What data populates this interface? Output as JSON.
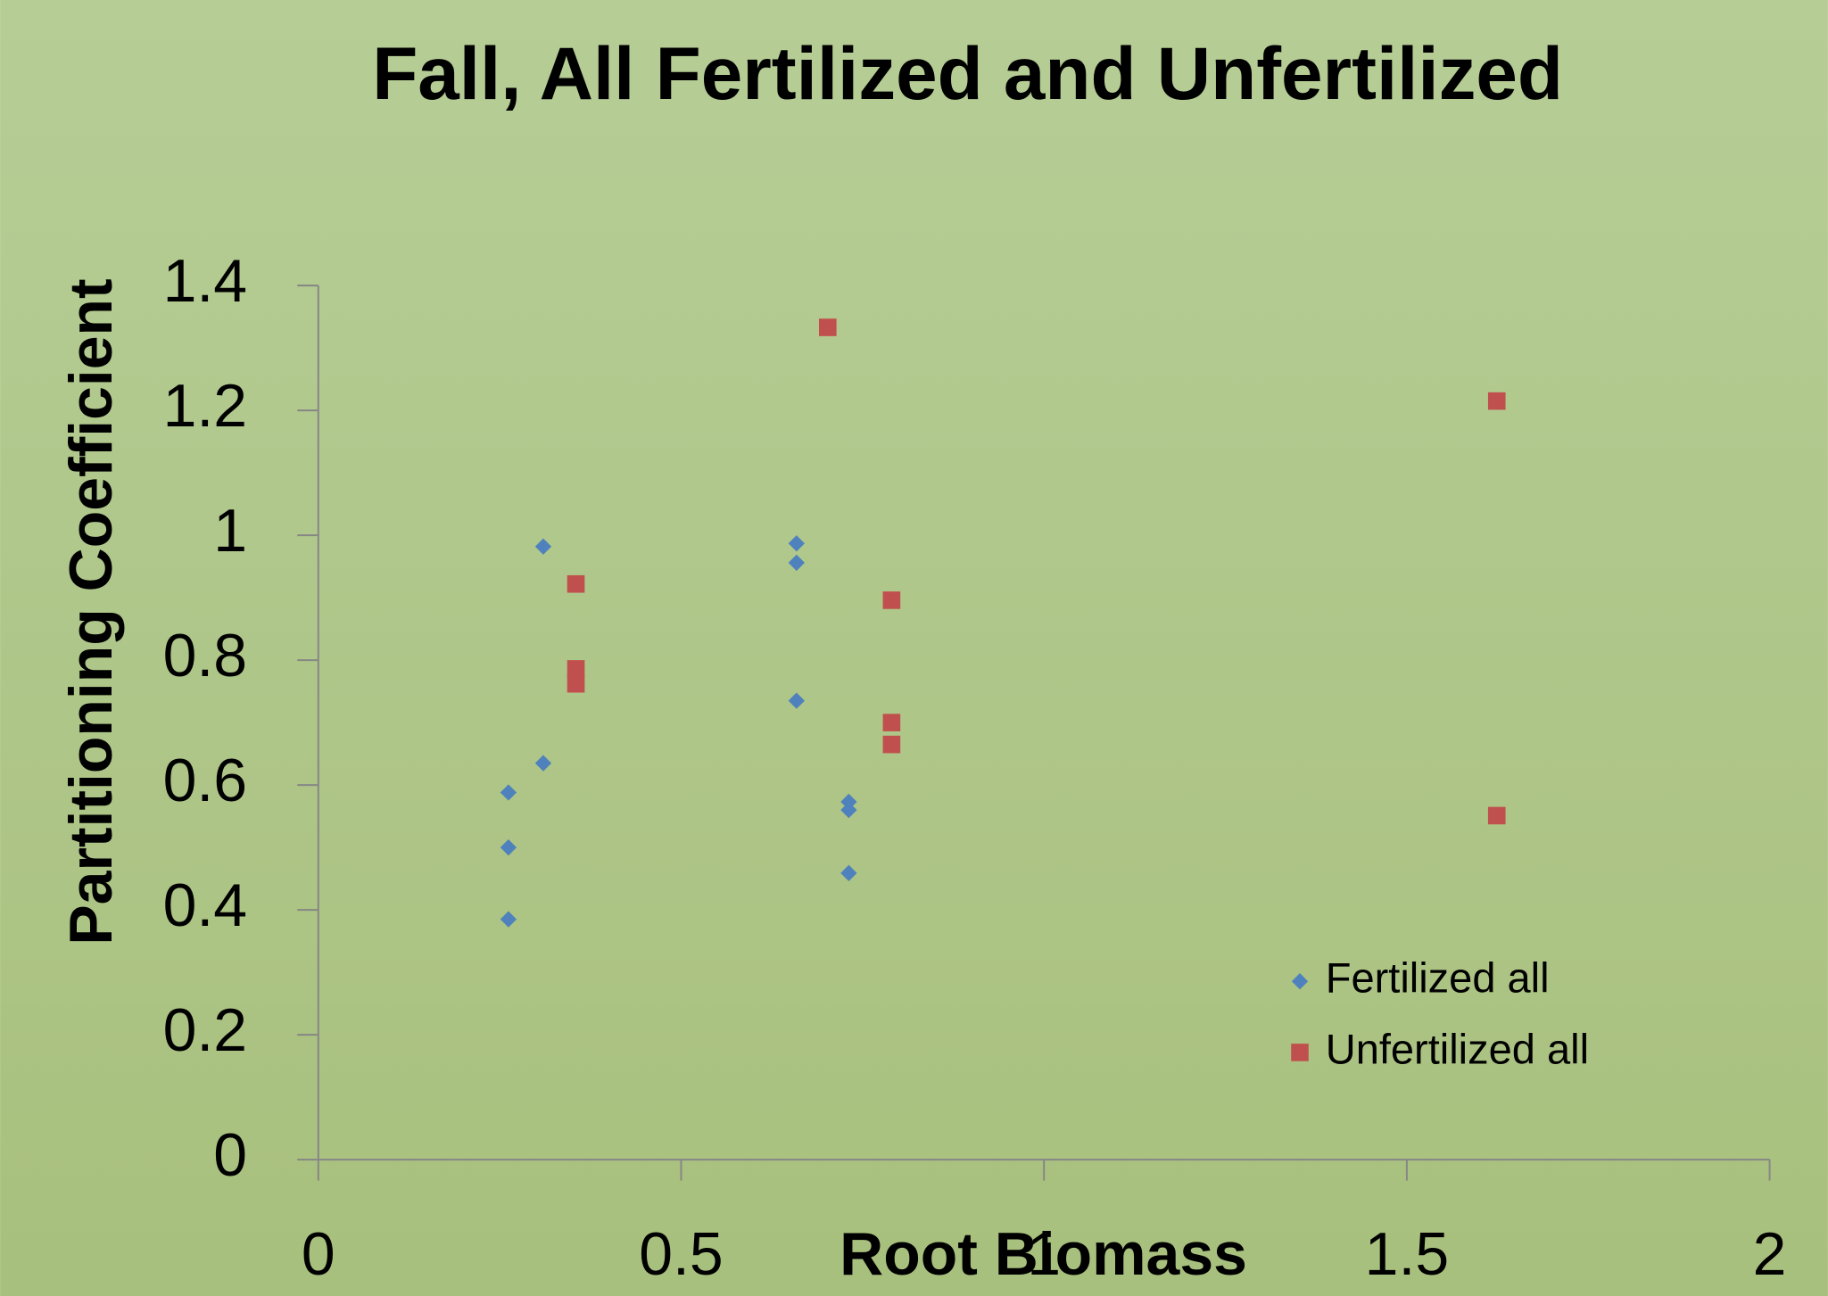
{
  "chart_data": {
    "type": "scatter",
    "title": "Fall, All Fertilized and Unfertilized",
    "xlabel": "Root Biomass",
    "ylabel": "Partitioning Coefficient",
    "xlim": [
      0,
      2
    ],
    "xticks": [
      0,
      0.5,
      1,
      1.5,
      2
    ],
    "ylim": [
      0,
      1.4
    ],
    "yticks": [
      0,
      0.2,
      0.4,
      0.6,
      0.8,
      1,
      1.2,
      1.4
    ],
    "grid": false,
    "legend": "lower right",
    "series": [
      {
        "name": "Fertilized all",
        "color": "#4f81bd",
        "marker": "diamond",
        "x": [
          0.262,
          0.262,
          0.262,
          0.31,
          0.31,
          0.659,
          0.659,
          0.659,
          0.731,
          0.731,
          0.731
        ],
        "values": [
          0.385,
          0.5,
          0.588,
          0.635,
          0.982,
          0.987,
          0.956,
          0.735,
          0.573,
          0.56,
          0.459
        ]
      },
      {
        "name": "Unfertilized all",
        "color": "#c0504d",
        "marker": "square",
        "x": [
          0.355,
          0.355,
          0.355,
          0.702,
          0.79,
          0.79,
          0.79,
          1.624,
          1.624
        ],
        "values": [
          0.922,
          0.786,
          0.762,
          1.333,
          0.896,
          0.7,
          0.665,
          1.215,
          0.551
        ]
      }
    ]
  }
}
